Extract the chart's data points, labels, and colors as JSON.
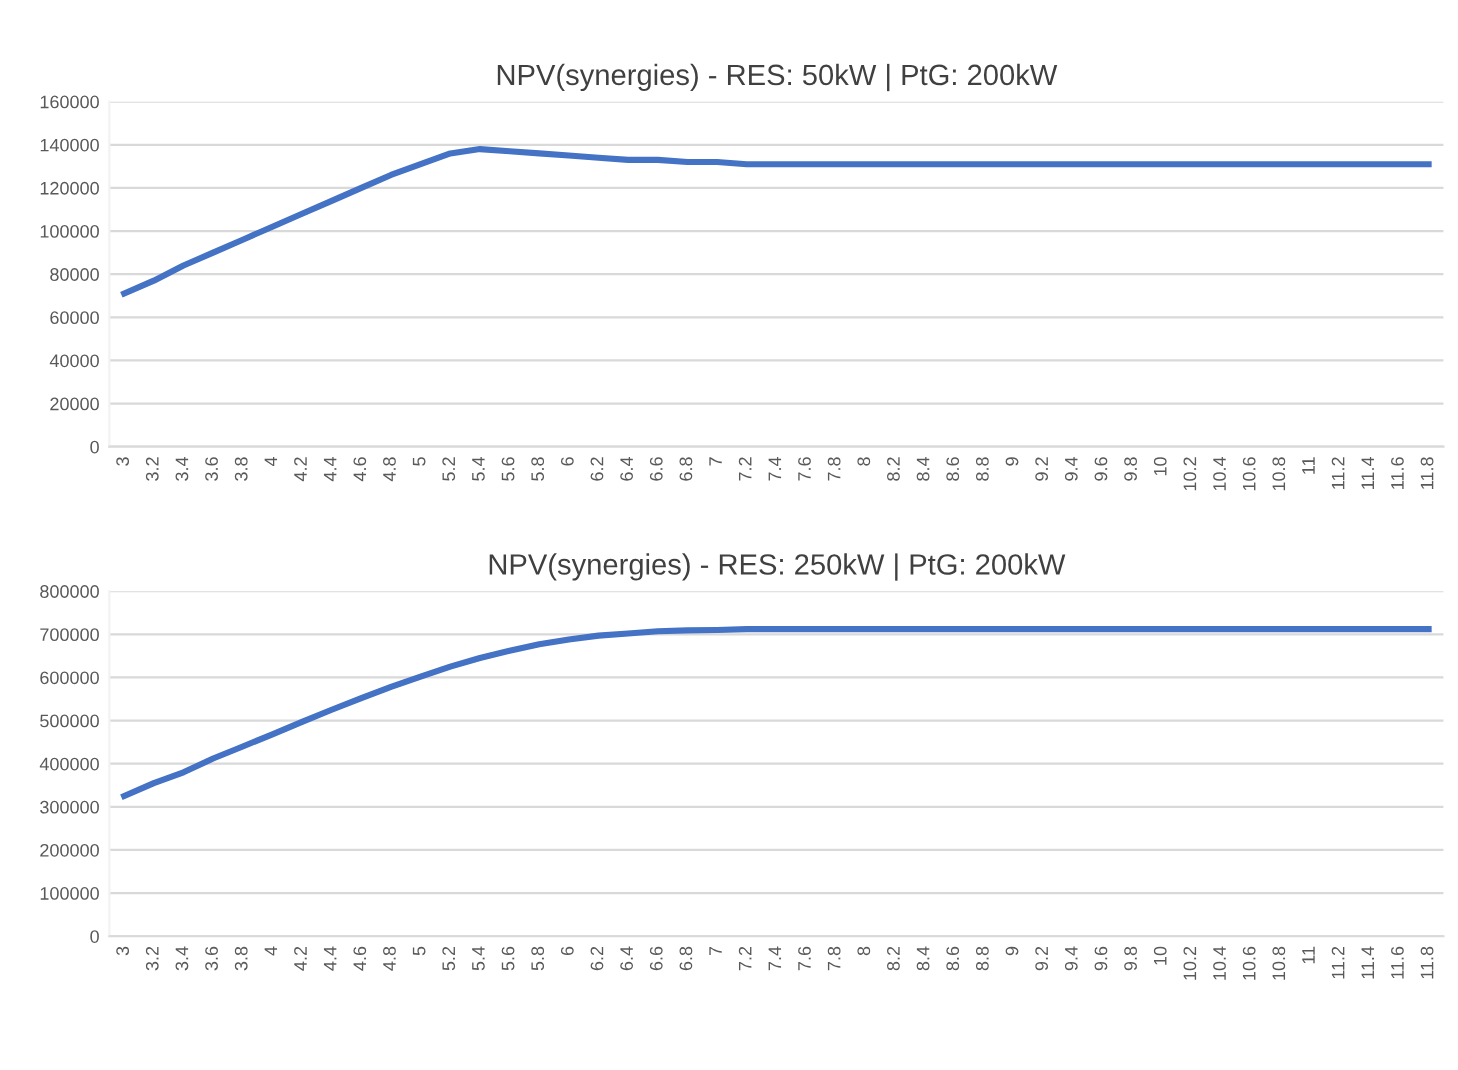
{
  "chart_data": [
    {
      "type": "line",
      "title": "NPV(synergies) - RES: 50kW | PtG: 200kW",
      "categories": [
        "3",
        "3.2",
        "3.4",
        "3.6",
        "3.8",
        "4",
        "4.2",
        "4.4",
        "4.6",
        "4.8",
        "5",
        "5.2",
        "5.4",
        "5.6",
        "5.8",
        "6",
        "6.2",
        "6.4",
        "6.6",
        "6.8",
        "7",
        "7.2",
        "7.4",
        "7.6",
        "7.8",
        "8",
        "8.2",
        "8.4",
        "8.6",
        "8.8",
        "9",
        "9.2",
        "9.4",
        "9.6",
        "9.8",
        "10",
        "10.2",
        "10.4",
        "10.6",
        "10.8",
        "11",
        "11.2",
        "11.4",
        "11.6",
        "11.8"
      ],
      "series": [
        {
          "color": "#4472c4",
          "values": [
            71000,
            77000,
            84000,
            90000,
            96000,
            102000,
            108000,
            114000,
            120000,
            126000,
            131000,
            136000,
            138000,
            137000,
            136000,
            135000,
            134000,
            133000,
            133000,
            132000,
            132000,
            131000,
            131000,
            131000,
            131000,
            131000,
            131000,
            131000,
            131000,
            131000,
            131000,
            131000,
            131000,
            131000,
            131000,
            131000,
            131000,
            131000,
            131000,
            131000,
            131000,
            131000,
            131000,
            131000,
            131000
          ]
        }
      ],
      "ylim": [
        0,
        160000
      ],
      "yticks": [
        0,
        20000,
        40000,
        60000,
        80000,
        100000,
        120000,
        140000,
        160000
      ],
      "grid": "y",
      "marker": "none",
      "line_style": "solid"
    },
    {
      "type": "line",
      "title": "NPV(synergies) - RES: 250kW | PtG: 200kW",
      "categories": [
        "3",
        "3.2",
        "3.4",
        "3.6",
        "3.8",
        "4",
        "4.2",
        "4.4",
        "4.6",
        "4.8",
        "5",
        "5.2",
        "5.4",
        "5.6",
        "5.8",
        "6",
        "6.2",
        "6.4",
        "6.6",
        "6.8",
        "7",
        "7.2",
        "7.4",
        "7.6",
        "7.8",
        "8",
        "8.2",
        "8.4",
        "8.6",
        "8.8",
        "9",
        "9.2",
        "9.4",
        "9.6",
        "9.8",
        "10",
        "10.2",
        "10.4",
        "10.6",
        "10.8",
        "11",
        "11.2",
        "11.4",
        "11.6",
        "11.8"
      ],
      "series": [
        {
          "color": "#4472c4",
          "values": [
            325000,
            355000,
            380000,
            412000,
            440000,
            468000,
            497000,
            525000,
            552000,
            578000,
            602000,
            625000,
            645000,
            662000,
            677000,
            688000,
            697000,
            702000,
            707000,
            709000,
            710000,
            712000,
            712000,
            712000,
            712000,
            712000,
            712000,
            712000,
            712000,
            712000,
            712000,
            712000,
            712000,
            712000,
            712000,
            712000,
            712000,
            712000,
            712000,
            712000,
            712000,
            712000,
            712000,
            712000,
            712000
          ]
        }
      ],
      "ylim": [
        0,
        800000
      ],
      "yticks": [
        0,
        100000,
        200000,
        300000,
        400000,
        500000,
        600000,
        700000,
        800000
      ],
      "grid": "y",
      "marker": "none",
      "line_style": "solid"
    }
  ]
}
